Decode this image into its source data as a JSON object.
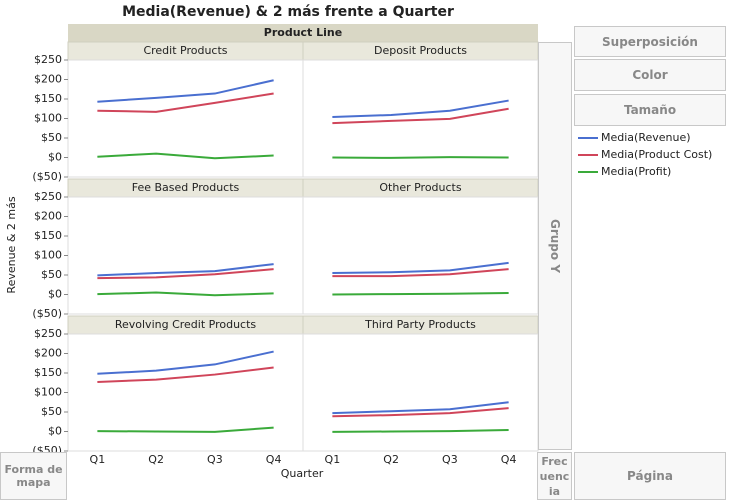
{
  "chart_data": {
    "type": "line",
    "title": "Media(Revenue) & 2 más frente a Quarter",
    "group_title": "Product Line",
    "y_label": "Revenue & 2 más",
    "x_label": "Quarter",
    "categories": [
      "Q1",
      "Q2",
      "Q3",
      "Q4"
    ],
    "ylim": [
      -50,
      250
    ],
    "yticks": [
      {
        "value": 250,
        "label": "$250"
      },
      {
        "value": 200,
        "label": "$200"
      },
      {
        "value": 150,
        "label": "$150"
      },
      {
        "value": 100,
        "label": "$100"
      },
      {
        "value": 50,
        "label": "$50"
      },
      {
        "value": 0,
        "label": "$0"
      },
      {
        "value": -50,
        "label": "($50)"
      }
    ],
    "series": [
      {
        "name": "Media(Revenue)",
        "color": "#4a6fd0"
      },
      {
        "name": "Media(Product Cost)",
        "color": "#d0455a"
      },
      {
        "name": "Media(Profit)",
        "color": "#3aaa3a"
      }
    ],
    "panels": [
      {
        "title": "Credit Products",
        "values": [
          [
            143,
            153,
            164,
            198
          ],
          [
            120,
            117,
            140,
            164
          ],
          [
            2,
            10,
            -2,
            5
          ]
        ]
      },
      {
        "title": "Deposit Products",
        "values": [
          [
            104,
            109,
            120,
            146
          ],
          [
            88,
            94,
            99,
            125
          ],
          [
            0,
            -1,
            1,
            0
          ]
        ]
      },
      {
        "title": "Fee Based Products",
        "values": [
          [
            49,
            55,
            60,
            78
          ],
          [
            42,
            44,
            52,
            65
          ],
          [
            1,
            5,
            -2,
            3
          ]
        ]
      },
      {
        "title": "Other Products",
        "values": [
          [
            55,
            57,
            62,
            81
          ],
          [
            47,
            47,
            52,
            65
          ],
          [
            0,
            1,
            2,
            4
          ]
        ]
      },
      {
        "title": "Revolving Credit Products",
        "values": [
          [
            148,
            156,
            172,
            205
          ],
          [
            127,
            133,
            146,
            164
          ],
          [
            1,
            0,
            -1,
            10
          ]
        ]
      },
      {
        "title": "Third Party Products",
        "values": [
          [
            47,
            52,
            57,
            75
          ],
          [
            39,
            42,
            47,
            60
          ],
          [
            -1,
            0,
            1,
            4
          ]
        ]
      }
    ]
  },
  "ui": {
    "overlay": "Superposición",
    "color": "Color",
    "size": "Tamaño",
    "group_y": "Grupo Y",
    "map_shape": "Forma de mapa",
    "frequency": "Frecuencia",
    "page": "Página"
  }
}
